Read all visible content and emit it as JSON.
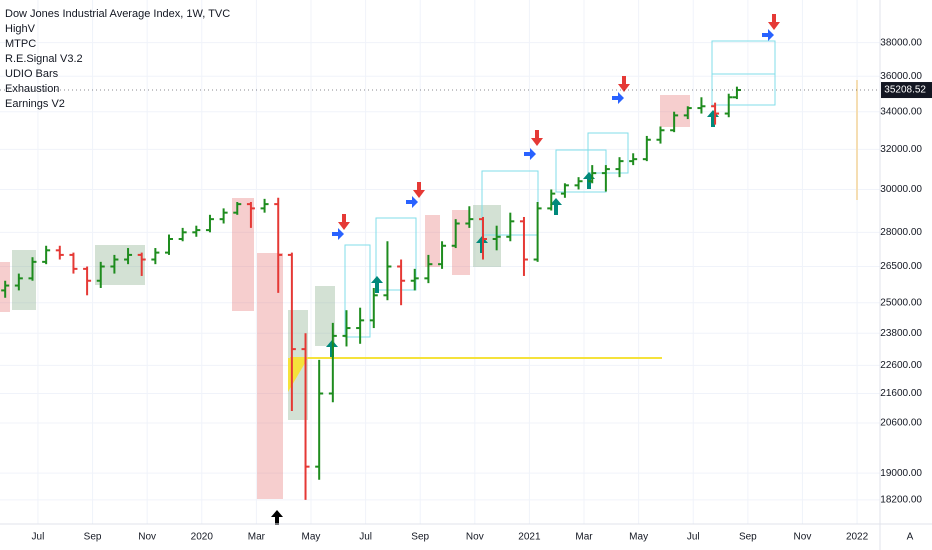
{
  "chart_data": {
    "type": "ohlc",
    "title": "Dow Jones Industrial Average Index, 1W, TVC",
    "indicators": [
      "HighV",
      "MTPC",
      "R.E.Signal V3.2",
      "UDIO Bars",
      "Exhaustion",
      "Earnings V2"
    ],
    "log_scale": true,
    "grid": true,
    "up_color": "#1e8c1e",
    "down_color": "#e53935",
    "x": [
      4.8,
      5.3,
      5.8,
      6.3,
      6.8,
      7.3,
      7.8,
      8.3,
      8.8,
      9.3,
      9.8,
      10.3,
      10.8,
      11.3,
      11.8,
      12.3,
      12.8,
      13.3,
      13.8,
      14.3,
      14.8,
      15.3,
      15.8,
      16.3,
      16.8,
      17.3,
      17.8,
      18.3,
      18.8,
      19.3,
      19.8,
      20.3,
      20.8,
      21.3,
      21.8,
      22.3,
      22.8,
      23.3,
      23.8,
      24.3,
      24.8,
      25.3,
      25.8,
      26.3,
      26.8,
      27.3,
      27.8,
      28.3,
      28.8,
      29.3,
      29.8,
      30.3,
      30.8,
      31.3,
      31.6
    ],
    "open": [
      25500,
      25700,
      26000,
      26700,
      27200,
      27000,
      26400,
      25900,
      26500,
      26800,
      27000,
      26800,
      27100,
      27700,
      28000,
      28100,
      28600,
      28900,
      29300,
      29100,
      29300,
      27000,
      23200,
      19200,
      21600,
      23700,
      24000,
      24300,
      25300,
      26500,
      25900,
      26000,
      26600,
      27400,
      28400,
      28600,
      27700,
      27800,
      28500,
      26800,
      29100,
      29800,
      30200,
      30400,
      30800,
      31000,
      31400,
      31500,
      32500,
      33000,
      33800,
      34200,
      34300,
      33900,
      34800
    ],
    "high": [
      25900,
      26200,
      26900,
      27400,
      27400,
      27100,
      26500,
      26700,
      27000,
      27300,
      27100,
      27300,
      27900,
      28200,
      28300,
      28800,
      29100,
      29400,
      29400,
      29550,
      29600,
      27100,
      23800,
      22800,
      24200,
      24700,
      24800,
      25600,
      27600,
      26800,
      26400,
      27000,
      27600,
      28600,
      29200,
      28700,
      28300,
      28900,
      28700,
      29400,
      30000,
      30300,
      30600,
      31200,
      31200,
      31600,
      31800,
      32700,
      33200,
      34000,
      34300,
      34800,
      34500,
      35000,
      35400
    ],
    "low": [
      25200,
      25500,
      25900,
      26600,
      26800,
      26200,
      25300,
      25600,
      26200,
      26600,
      26100,
      26600,
      27000,
      27600,
      27800,
      28000,
      28400,
      28800,
      28200,
      28900,
      25400,
      21000,
      18200,
      18800,
      21300,
      23300,
      23400,
      24000,
      25100,
      24900,
      25500,
      25800,
      26400,
      27300,
      28200,
      26800,
      27200,
      27600,
      26100,
      26700,
      29000,
      29600,
      30000,
      30300,
      29900,
      30600,
      31200,
      31400,
      32300,
      32900,
      33600,
      33900,
      33300,
      33700,
      34700
    ],
    "close": [
      25700,
      26000,
      26700,
      27200,
      27000,
      26400,
      25900,
      26500,
      26800,
      27000,
      26800,
      27100,
      27700,
      28000,
      28100,
      28600,
      28900,
      29300,
      29100,
      29300,
      27000,
      23200,
      19200,
      21600,
      23700,
      24000,
      24300,
      25300,
      26500,
      25900,
      26000,
      26600,
      27400,
      28400,
      28600,
      27700,
      27800,
      28500,
      26800,
      29100,
      29800,
      30200,
      30400,
      30800,
      31000,
      31400,
      31500,
      32500,
      33000,
      33800,
      34200,
      34300,
      33900,
      34800,
      35208.52
    ],
    "last_price": 35208.52,
    "xlim": [
      4.61,
      36.84
    ],
    "xticks": [
      {
        "value": 6,
        "label": "Jul"
      },
      {
        "value": 8,
        "label": "Sep"
      },
      {
        "value": 10,
        "label": "Nov"
      },
      {
        "value": 12,
        "label": "2020"
      },
      {
        "value": 14,
        "label": "Mar"
      },
      {
        "value": 16,
        "label": "May"
      },
      {
        "value": 18,
        "label": "Jul"
      },
      {
        "value": 20,
        "label": "Sep"
      },
      {
        "value": 22,
        "label": "Nov"
      },
      {
        "value": 24,
        "label": "2021"
      },
      {
        "value": 26,
        "label": "Mar"
      },
      {
        "value": 28,
        "label": "May"
      },
      {
        "value": 30,
        "label": "Jul"
      },
      {
        "value": 32,
        "label": "Sep"
      },
      {
        "value": 34,
        "label": "Nov"
      },
      {
        "value": 36,
        "label": "2022"
      }
    ],
    "ylim": [
      17620,
      40700
    ],
    "yticks": [
      {
        "value": 18200,
        "label": "18200.00"
      },
      {
        "value": 19000,
        "label": "19000.00"
      },
      {
        "value": 20600,
        "label": "20600.00"
      },
      {
        "value": 21600,
        "label": "21600.00"
      },
      {
        "value": 22600,
        "label": "22600.00"
      },
      {
        "value": 23800,
        "label": "23800.00"
      },
      {
        "value": 25000,
        "label": "25000.00"
      },
      {
        "value": 26500,
        "label": "26500.00"
      },
      {
        "value": 28000,
        "label": "28000.00"
      },
      {
        "value": 30000,
        "label": "30000.00"
      },
      {
        "value": 32000,
        "label": "32000.00"
      },
      {
        "value": 34000,
        "label": "34000.00"
      },
      {
        "value": 36000,
        "label": "36000.00"
      },
      {
        "value": 38000,
        "label": "38000.00"
      }
    ],
    "corner_label": "A"
  }
}
